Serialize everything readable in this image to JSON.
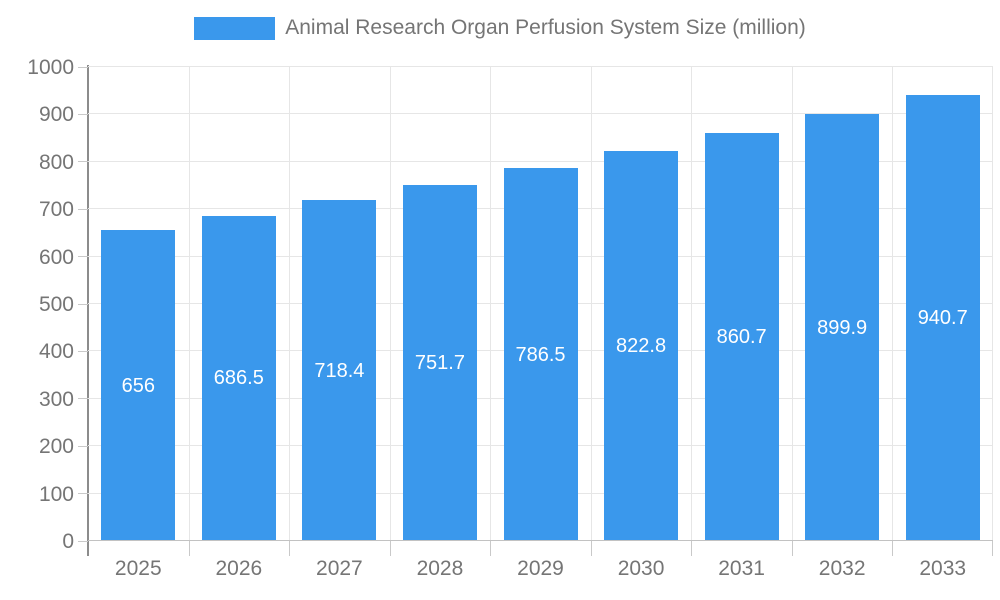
{
  "legend": {
    "label": "Animal Research Organ Perfusion System Size (million)"
  },
  "colors": {
    "background": "#FFFFFF",
    "bar": "#3A98EC",
    "grid_line": "#E6E6E6",
    "axis_line": "#8C8C8C",
    "tick_line": "#C9C9C9",
    "baseline": "#C2C2C2",
    "axis_text": "#757575",
    "value_text": "#FFFFFF"
  },
  "chart_data": {
    "type": "bar",
    "title": "Animal Research Organ Perfusion System Size (million)",
    "categories": [
      "2025",
      "2026",
      "2027",
      "2028",
      "2029",
      "2030",
      "2031",
      "2032",
      "2033"
    ],
    "series": [
      {
        "name": "Animal Research Organ Perfusion System Size (million)",
        "values": [
          656,
          686.5,
          718.4,
          751.7,
          786.5,
          822.8,
          860.7,
          899.9,
          940.7
        ]
      }
    ],
    "value_labels": [
      "656",
      "686.5",
      "718.4",
      "751.7",
      "786.5",
      "822.8",
      "860.7",
      "899.9",
      "940.7"
    ],
    "xlabel": "",
    "ylabel": "",
    "ylim": [
      0,
      1000
    ],
    "ytick_step": 100,
    "yticks": [
      0,
      100,
      200,
      300,
      400,
      500,
      600,
      700,
      800,
      900,
      1000
    ],
    "grid": true,
    "legend_position": "top",
    "value_label_position": "inside-center"
  }
}
